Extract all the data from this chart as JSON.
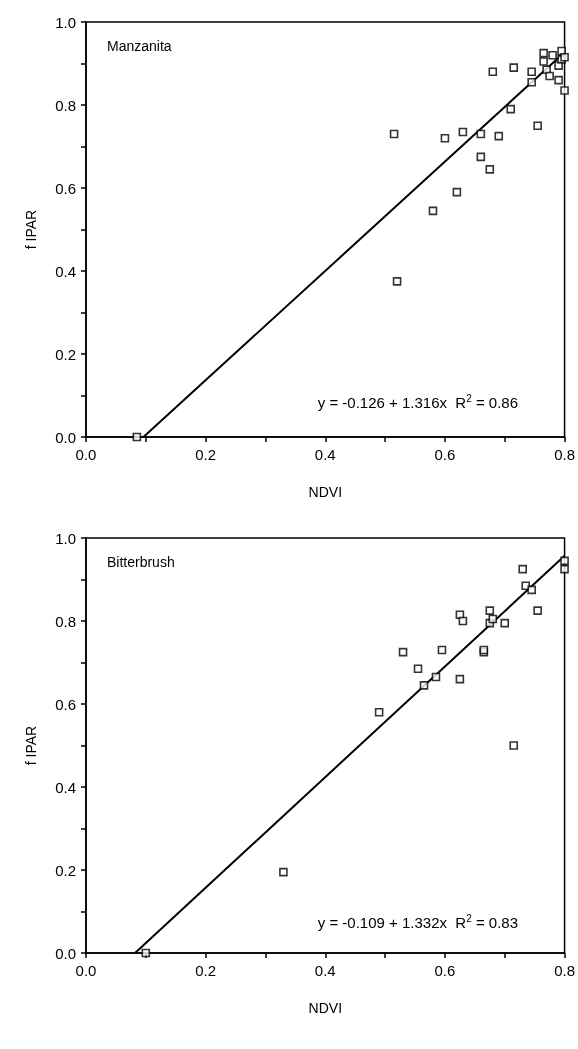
{
  "chart_data": [
    {
      "type": "scatter",
      "title": "Manzanita",
      "xlabel": "NDVI",
      "ylabel": "f IPAR",
      "xlim": [
        0,
        0.8
      ],
      "ylim": [
        0,
        1
      ],
      "xticks": [
        {
          "value": 0,
          "label": "0.0"
        },
        {
          "value": 0.1,
          "label": null
        },
        0.2,
        {
          "value": 0.3,
          "label": null
        },
        0.4,
        {
          "value": 0.5,
          "label": null
        },
        0.6,
        {
          "value": 0.7,
          "label": null
        },
        0.8
      ],
      "yticks": [
        {
          "value": 0,
          "label": "0.0"
        },
        {
          "value": 0.1,
          "label": null
        },
        0.2,
        {
          "value": 0.3,
          "label": null
        },
        0.4,
        {
          "value": 0.5,
          "label": null
        },
        0.6,
        {
          "value": 0.7,
          "label": null
        },
        0.8,
        {
          "value": 0.9,
          "label": null
        },
        {
          "value": 1,
          "label": "1.0"
        }
      ],
      "marker": "square",
      "grid": false,
      "annotations": [
        "y = -0.126 + 1.316x  R$^{2}$ = 0.86"
      ],
      "series": [
        {
          "color": "#000000",
          "x": [
            0.085,
            0.515,
            0.52,
            0.58,
            0.6,
            0.62,
            0.63,
            0.66,
            0.66,
            0.675,
            0.68,
            0.69,
            0.71,
            0.715,
            0.745,
            0.745,
            0.755,
            0.765,
            0.765,
            0.77,
            0.775,
            0.78,
            0.79,
            0.79,
            0.795,
            0.795,
            0.8,
            0.8
          ],
          "values": [
            0,
            0.73,
            0.375,
            0.545,
            0.72,
            0.59,
            0.735,
            0.73,
            0.675,
            0.645,
            0.88,
            0.725,
            0.79,
            0.89,
            0.88,
            0.855,
            0.75,
            0.905,
            0.925,
            0.885,
            0.87,
            0.92,
            0.86,
            0.895,
            0.91,
            0.93,
            0.835,
            0.915
          ]
        },
        {
          "type": "line",
          "color": "#000000",
          "marker": "none",
          "x": [
            0.096,
            0.8
          ],
          "values": [
            0,
            0.927
          ]
        }
      ]
    },
    {
      "type": "scatter",
      "title": "Bitterbrush",
      "xlabel": "NDVI",
      "ylabel": "f IPAR",
      "xlim": [
        0,
        0.8
      ],
      "ylim": [
        0,
        1
      ],
      "xticks": [
        {
          "value": 0,
          "label": "0.0"
        },
        {
          "value": 0.1,
          "label": null
        },
        0.2,
        {
          "value": 0.3,
          "label": null
        },
        0.4,
        {
          "value": 0.5,
          "label": null
        },
        0.6,
        {
          "value": 0.7,
          "label": null
        },
        0.8
      ],
      "yticks": [
        {
          "value": 0,
          "label": "0.0"
        },
        {
          "value": 0.1,
          "label": null
        },
        0.2,
        {
          "value": 0.3,
          "label": null
        },
        0.4,
        {
          "value": 0.5,
          "label": null
        },
        0.6,
        {
          "value": 0.7,
          "label": null
        },
        0.8,
        {
          "value": 0.9,
          "label": null
        },
        {
          "value": 1,
          "label": "1.0"
        }
      ],
      "marker": "square",
      "grid": false,
      "annotations": [
        "y = -0.109 + 1.332x  R$^{2}$ = 0.83"
      ],
      "series": [
        {
          "color": "#000000",
          "x": [
            0.1,
            0.33,
            0.49,
            0.53,
            0.555,
            0.565,
            0.585,
            0.595,
            0.625,
            0.625,
            0.63,
            0.665,
            0.665,
            0.675,
            0.675,
            0.68,
            0.7,
            0.715,
            0.73,
            0.735,
            0.745,
            0.755,
            0.8,
            0.8
          ],
          "values": [
            0,
            0.195,
            0.58,
            0.725,
            0.685,
            0.645,
            0.665,
            0.73,
            0.66,
            0.815,
            0.8,
            0.725,
            0.73,
            0.825,
            0.795,
            0.805,
            0.795,
            0.5,
            0.925,
            0.885,
            0.875,
            0.825,
            0.925,
            0.945
          ]
        },
        {
          "type": "line",
          "color": "#000000",
          "marker": "none",
          "x": [
            0.082,
            0.8
          ],
          "values": [
            0,
            0.957
          ]
        }
      ]
    }
  ]
}
